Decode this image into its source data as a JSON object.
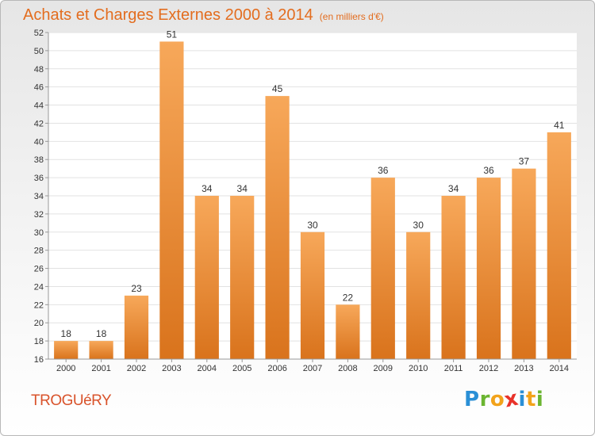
{
  "header": {
    "title": "Achats et Charges Externes 2000 à 2014",
    "subtitle": "(en milliers d'€)"
  },
  "footer": {
    "commune": "TROGUéRY",
    "logo_letters": [
      {
        "char": "P",
        "color": "#2a8fd6"
      },
      {
        "char": "r",
        "color": "#6bb531"
      },
      {
        "char": "o",
        "color": "#f2a31b"
      },
      {
        "char": "x",
        "color": "#e8322a"
      },
      {
        "char": "i",
        "color": "#2a8fd6"
      },
      {
        "char": "t",
        "color": "#f2a31b"
      },
      {
        "char": "i",
        "color": "#6bb531"
      }
    ]
  },
  "chart_data": {
    "type": "bar",
    "title": "Achats et Charges Externes 2000 à 2014",
    "subtitle": "(en milliers d'€)",
    "categories": [
      "2000",
      "2001",
      "2002",
      "2003",
      "2004",
      "2005",
      "2006",
      "2007",
      "2008",
      "2009",
      "2010",
      "2011",
      "2012",
      "2013",
      "2014"
    ],
    "values": [
      18,
      18,
      23,
      51,
      34,
      34,
      45,
      30,
      22,
      36,
      30,
      34,
      36,
      37,
      41
    ],
    "ylim": [
      16,
      52
    ],
    "yticks": [
      16,
      18,
      20,
      22,
      24,
      26,
      28,
      30,
      32,
      34,
      36,
      38,
      40,
      42,
      44,
      46,
      48,
      50,
      52
    ],
    "grid": true,
    "bar_color_top": "#f7a85a",
    "bar_color_bottom": "#d9731c"
  }
}
